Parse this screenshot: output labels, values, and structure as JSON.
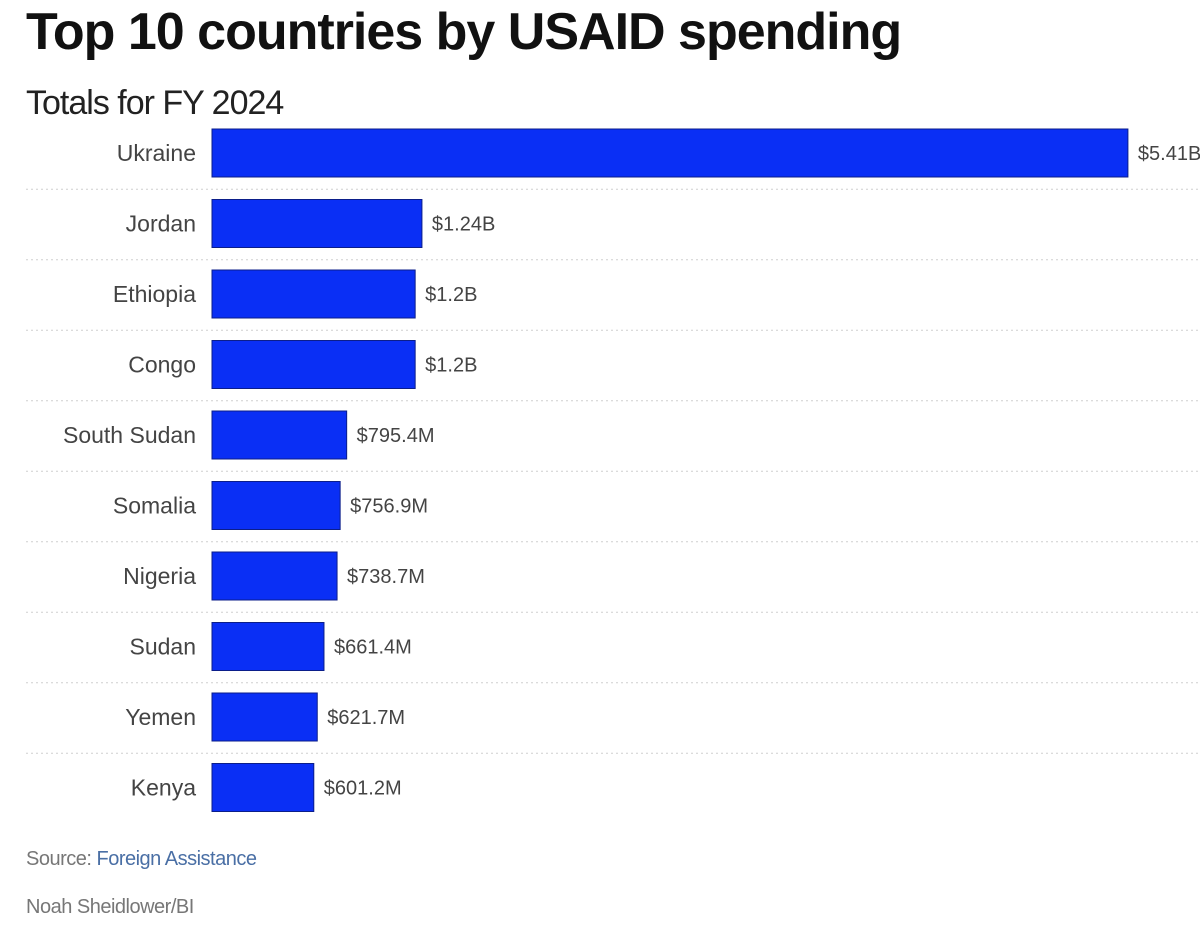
{
  "chart_data": {
    "type": "bar",
    "orientation": "horizontal",
    "title": "Top 10 countries by USAID spending",
    "subtitle": "Totals for FY 2024",
    "xlabel": "",
    "ylabel": "",
    "unit": "USD billions",
    "categories": [
      "Ukraine",
      "Jordan",
      "Ethiopia",
      "Congo",
      "South Sudan",
      "Somalia",
      "Nigeria",
      "Sudan",
      "Yemen",
      "Kenya"
    ],
    "values": [
      5.41,
      1.24,
      1.2,
      1.2,
      0.7954,
      0.7569,
      0.7387,
      0.6614,
      0.6217,
      0.6012
    ],
    "labels": [
      "$5.41B",
      "$1.24B",
      "$1.2B",
      "$1.2B",
      "$795.4M",
      "$756.9M",
      "$738.7M",
      "$661.4M",
      "$621.7M",
      "$601.2M"
    ],
    "grid": false,
    "legend": "none",
    "bar_color": "#0a2ff5"
  },
  "footer": {
    "source_prefix": "Source: ",
    "source_link": "Foreign Assistance",
    "credit": "Noah Sheidlower/BI"
  }
}
